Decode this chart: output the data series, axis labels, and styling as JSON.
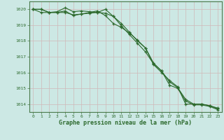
{
  "title": "Graphe pression niveau de la mer (hPa)",
  "bg_color": "#cce8e4",
  "grid_color": "#b0d8d0",
  "line_color": "#2d6a2d",
  "spine_color": "#4a7a4a",
  "x_labels": [
    "0",
    "1",
    "2",
    "3",
    "4",
    "5",
    "6",
    "7",
    "8",
    "9",
    "10",
    "11",
    "12",
    "13",
    "14",
    "15",
    "16",
    "17",
    "18",
    "19",
    "20",
    "21",
    "22",
    "23"
  ],
  "ylim": [
    1013.5,
    1020.5
  ],
  "yticks": [
    1014,
    1015,
    1016,
    1017,
    1018,
    1019,
    1020
  ],
  "line1": [
    1020.0,
    1020.0,
    1019.8,
    1019.85,
    1020.1,
    1019.85,
    1019.9,
    1019.85,
    1019.8,
    1020.0,
    1019.55,
    1019.1,
    1018.55,
    1018.0,
    1017.55,
    1016.6,
    1016.1,
    1015.4,
    1015.05,
    1014.3,
    1014.0,
    1014.0,
    1013.9,
    1013.75
  ],
  "line2": [
    1020.0,
    1019.8,
    1019.8,
    1019.8,
    1019.8,
    1019.65,
    1019.7,
    1019.75,
    1019.8,
    1019.75,
    1019.55,
    1018.95,
    1018.4,
    1017.85,
    1017.3,
    1016.55,
    1016.1,
    1015.2,
    1015.0,
    1014.2,
    1013.95,
    1013.95,
    1013.85,
    1013.65
  ],
  "line3": [
    1020.0,
    1020.0,
    1019.8,
    1019.8,
    1019.9,
    1019.6,
    1019.7,
    1019.8,
    1019.9,
    1019.6,
    1019.1,
    1018.85,
    1018.5,
    1018.05,
    1017.55,
    1016.5,
    1016.0,
    1015.5,
    1015.1,
    1014.0,
    1014.0,
    1014.0,
    1013.9,
    1013.7
  ]
}
